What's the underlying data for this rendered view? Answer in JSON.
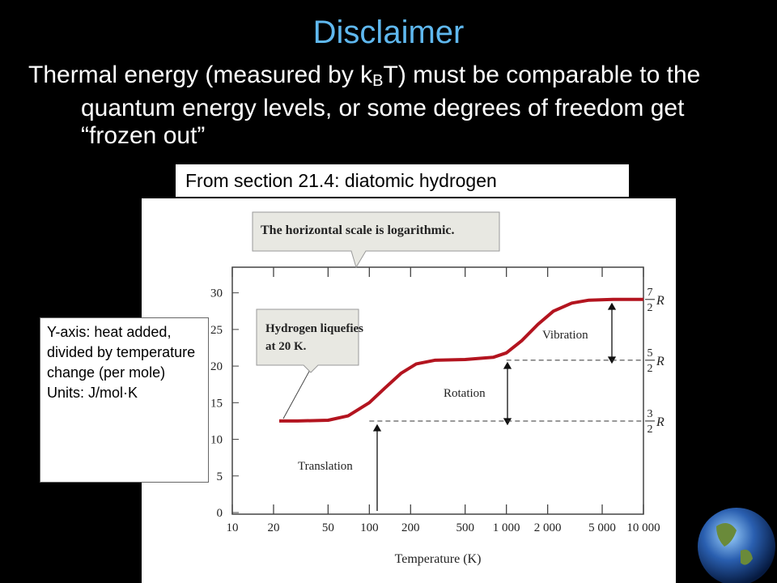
{
  "slide": {
    "title": "Disclaimer",
    "bullet": [
      "Thermal energy (measured by k",
      "B",
      "T) must be comparable to the quantum energy levels, or some degrees of freedom get “frozen out”"
    ],
    "caption": "From section 21.4: diatomic hydrogen",
    "note": [
      "Y-axis: heat added, divided by temperature change (per mole)",
      "Units: J/mol·K"
    ]
  },
  "chart_data": {
    "type": "line",
    "x_label": "Temperature (K)",
    "log_x": true,
    "xlim": [
      10,
      10000
    ],
    "xticks": [
      10,
      20,
      50,
      100,
      200,
      500,
      {
        "value": 1000,
        "label": "1 000"
      },
      {
        "value": 2000,
        "label": "2 000"
      },
      {
        "value": 5000,
        "label": "5 000"
      },
      {
        "value": 10000,
        "label": "10 000"
      }
    ],
    "ylim": [
      0,
      33.5
    ],
    "yticks": [
      0,
      5,
      10,
      15,
      20,
      25,
      30
    ],
    "series": [
      {
        "color": "#b3141f",
        "x": [
          22,
          30,
          50,
          70,
          100,
          130,
          170,
          220,
          300,
          500,
          800,
          1000,
          1300,
          1700,
          2200,
          3000,
          4000,
          6000,
          10000
        ],
        "values": [
          12.5,
          12.5,
          12.6,
          13.2,
          15,
          17,
          19,
          20.3,
          20.8,
          20.9,
          21.2,
          21.8,
          23.5,
          25.7,
          27.5,
          28.6,
          29,
          29.1,
          29.1
        ]
      }
    ],
    "reference_lines": [
      {
        "value": 29.1,
        "numerator": "7",
        "denominator": "2",
        "symbol": "R"
      },
      {
        "value": 20.8,
        "numerator": "5",
        "denominator": "2",
        "symbol": "R",
        "x_start": 1000
      },
      {
        "value": 12.5,
        "numerator": "3",
        "denominator": "2",
        "symbol": "R",
        "x_start": 100
      }
    ],
    "annotations": [
      "The horizontal scale is logarithmic.",
      "Hydrogen liquefies",
      "at 20 K.",
      "Vibration",
      "Rotation",
      "Translation"
    ]
  }
}
